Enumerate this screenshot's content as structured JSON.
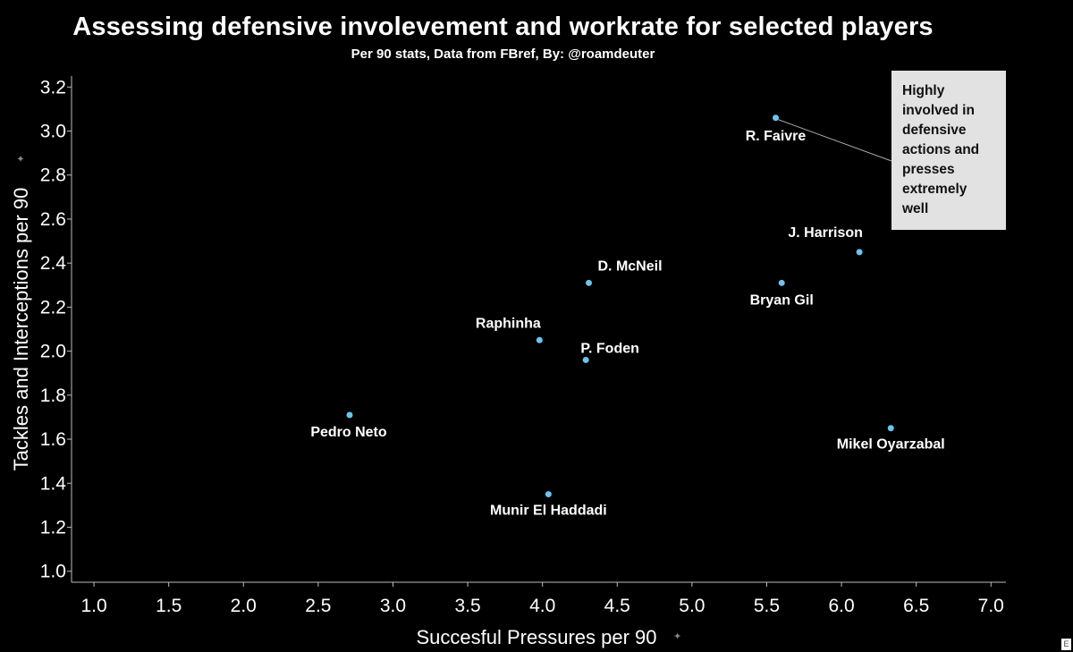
{
  "title": "Assessing defensive involevement and workrate for selected players",
  "subtitle": "Per 90 stats, Data from FBref, By: @roamdeuter",
  "chart_data": {
    "type": "scatter",
    "xlabel": "Succesful Pressures per 90",
    "ylabel": "Tackles and Interceptions per 90",
    "xlim": [
      0.85,
      7.1
    ],
    "ylim": [
      0.95,
      3.25
    ],
    "xticks": [
      "1.0",
      "1.5",
      "2.0",
      "2.5",
      "3.0",
      "3.5",
      "4.0",
      "4.5",
      "5.0",
      "5.5",
      "6.0",
      "6.5",
      "7.0"
    ],
    "yticks": [
      "1.0",
      "1.2",
      "1.4",
      "1.6",
      "1.8",
      "2.0",
      "2.2",
      "2.4",
      "2.6",
      "2.8",
      "3.0",
      "3.2"
    ],
    "points": [
      {
        "label": "R. Faivre",
        "x": 5.56,
        "y": 3.06
      },
      {
        "label": "J. Harrison",
        "x": 6.12,
        "y": 2.45
      },
      {
        "label": "D. McNeil",
        "x": 4.31,
        "y": 2.31
      },
      {
        "label": "Bryan Gil",
        "x": 5.6,
        "y": 2.31
      },
      {
        "label": "Raphinha",
        "x": 3.98,
        "y": 2.05
      },
      {
        "label": "P. Foden",
        "x": 4.29,
        "y": 1.96
      },
      {
        "label": "Pedro Neto",
        "x": 2.71,
        "y": 1.71
      },
      {
        "label": "Mikel Oyarzabal",
        "x": 6.33,
        "y": 1.65
      },
      {
        "label": "Munir El Haddadi",
        "x": 4.04,
        "y": 1.35
      }
    ],
    "point_color": "#6cc4ee",
    "grid": false,
    "annotation": "Highly involved in defensive actions and presses extremely well"
  }
}
